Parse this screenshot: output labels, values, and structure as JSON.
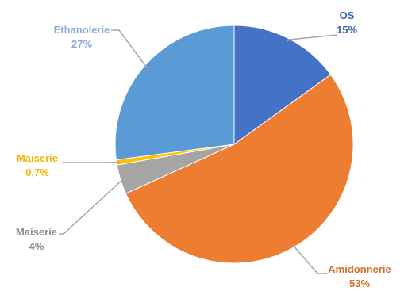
{
  "chart_data": {
    "type": "pie",
    "title": "",
    "slices": [
      {
        "label": "OS",
        "value": 15,
        "value_label": "15%",
        "color": "#4472C4",
        "label_color": "#3B62AE"
      },
      {
        "label": "Amidonnerie",
        "value": 53,
        "value_label": "53%",
        "color": "#ED7D31",
        "label_color": "#D36F2B"
      },
      {
        "label": "Maiserie",
        "value": 4,
        "value_label": "4%",
        "color": "#A5A5A5",
        "label_color": "#8C8C8C"
      },
      {
        "label": "Maiserie",
        "value": 0.7,
        "value_label": "0,7%",
        "color": "#FFC000",
        "label_color": "#F2B705"
      },
      {
        "label": "Ethanolerie",
        "value": 27,
        "value_label": "27%",
        "color": "#5B9BD5",
        "label_color": "#8EAADB"
      }
    ],
    "start_angle": "12 o'clock, clockwise",
    "legend": "none",
    "data_labels": "outside with leader lines"
  }
}
